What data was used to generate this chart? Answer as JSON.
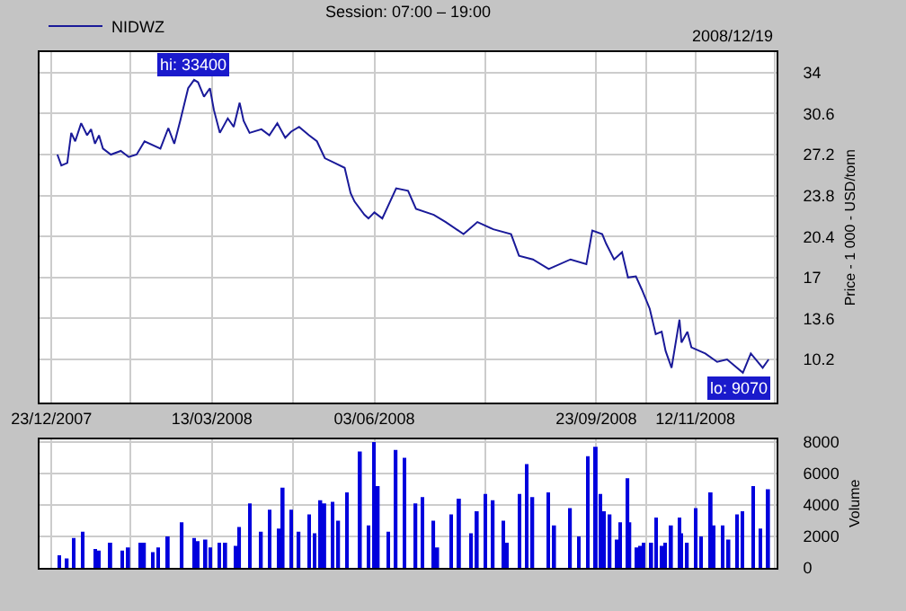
{
  "chart_data": [
    {
      "type": "line",
      "title": "Session: 07:00 – 19:00",
      "ylabel": "Price - 1 000 - USD/tonn",
      "legend": "top left",
      "grid": true,
      "annotations": [
        "2008/12/19",
        {
          "text": "hi: 33400",
          "x": "2008-03-04",
          "y": 33.4
        },
        {
          "text": "lo: 9070",
          "x": "2008-12-06",
          "y": 9.07
        }
      ],
      "xlim": [
        "2007-12-17",
        "2008-12-23"
      ],
      "xticks": [
        {
          "value": "2007-12-23",
          "label": "23/12/2007"
        },
        {
          "value": "2008-02-01",
          "label": null
        },
        {
          "value": "2008-03-13",
          "label": "13/03/2008"
        },
        {
          "value": "2008-04-23",
          "label": null
        },
        {
          "value": "2008-06-03",
          "label": "03/06/2008"
        },
        {
          "value": "2008-07-29",
          "label": null
        },
        {
          "value": "2008-09-23",
          "label": "23/09/2008"
        },
        {
          "value": "2008-10-18",
          "label": null
        },
        {
          "value": "2008-11-12",
          "label": "12/11/2008"
        },
        {
          "value": "2008-12-22",
          "label": null
        }
      ],
      "ylim": [
        6.6,
        35.7
      ],
      "yticks": [
        10.2,
        13.6,
        17,
        20.4,
        23.8,
        27.2,
        30.6,
        34
      ],
      "series": [
        {
          "name": "NIDWZ",
          "color": "#1a1a99",
          "x": [
            "2007-12-26",
            "2007-12-28",
            "2007-12-31",
            "2008-01-02",
            "2008-01-04",
            "2008-01-07",
            "2008-01-10",
            "2008-01-12",
            "2008-01-14",
            "2008-01-16",
            "2008-01-18",
            "2008-01-22",
            "2008-01-27",
            "2008-01-31",
            "2008-02-04",
            "2008-02-08",
            "2008-02-16",
            "2008-02-20",
            "2008-02-23",
            "2008-02-26",
            "2008-03-01",
            "2008-03-04",
            "2008-03-06",
            "2008-03-09",
            "2008-03-12",
            "2008-03-14",
            "2008-03-17",
            "2008-03-21",
            "2008-03-24",
            "2008-03-27",
            "2008-03-29",
            "2008-04-01",
            "2008-04-07",
            "2008-04-11",
            "2008-04-15",
            "2008-04-19",
            "2008-04-22",
            "2008-04-26",
            "2008-05-01",
            "2008-05-05",
            "2008-05-09",
            "2008-05-14",
            "2008-05-19",
            "2008-05-22",
            "2008-05-24",
            "2008-05-29",
            "2008-05-31",
            "2008-06-03",
            "2008-06-07",
            "2008-06-14",
            "2008-06-20",
            "2008-06-24",
            "2008-07-03",
            "2008-07-09",
            "2008-07-18",
            "2008-07-25",
            "2008-08-02",
            "2008-08-11",
            "2008-08-15",
            "2008-08-22",
            "2008-08-30",
            "2008-09-10",
            "2008-09-18",
            "2008-09-21",
            "2008-09-26",
            "2008-09-28",
            "2008-10-02",
            "2008-10-06",
            "2008-10-09",
            "2008-10-13",
            "2008-10-16",
            "2008-10-20",
            "2008-10-23",
            "2008-10-26",
            "2008-10-28",
            "2008-10-31",
            "2008-11-04",
            "2008-11-05",
            "2008-11-08",
            "2008-11-10",
            "2008-11-17",
            "2008-11-23",
            "2008-11-28",
            "2008-12-06",
            "2008-12-10",
            "2008-12-16",
            "2008-12-19"
          ],
          "values": [
            27.2,
            26.3,
            26.5,
            29.0,
            28.3,
            29.8,
            28.8,
            29.3,
            28.1,
            28.8,
            27.7,
            27.2,
            27.5,
            27.0,
            27.2,
            28.3,
            27.7,
            29.4,
            28.1,
            30.0,
            32.7,
            33.4,
            33.2,
            32.0,
            32.7,
            30.9,
            29.0,
            30.2,
            29.5,
            31.5,
            30.0,
            29.0,
            29.3,
            28.8,
            29.8,
            28.6,
            29.1,
            29.5,
            28.8,
            28.3,
            26.9,
            26.5,
            26.1,
            24.0,
            23.3,
            22.2,
            21.9,
            22.4,
            21.9,
            24.4,
            24.2,
            22.7,
            22.2,
            21.6,
            20.6,
            21.6,
            21.0,
            20.6,
            18.8,
            18.5,
            17.7,
            18.5,
            18.1,
            20.9,
            20.6,
            19.8,
            18.5,
            19.1,
            17.0,
            17.1,
            16.0,
            14.4,
            12.3,
            12.5,
            10.9,
            9.5,
            13.5,
            11.6,
            12.5,
            11.2,
            10.7,
            10.0,
            10.2,
            9.1,
            10.7,
            9.5,
            10.2
          ]
        }
      ]
    },
    {
      "type": "bar",
      "ylabel": "Volume",
      "grid": true,
      "tick_labels": "y",
      "xlim": [
        "2007-12-17",
        "2008-12-23"
      ],
      "xticks": [
        {
          "value": "2007-12-23",
          "label": null
        },
        {
          "value": "2008-02-01",
          "label": null
        },
        {
          "value": "2008-03-13",
          "label": null
        },
        {
          "value": "2008-04-23",
          "label": null
        },
        {
          "value": "2008-06-03",
          "label": null
        },
        {
          "value": "2008-07-29",
          "label": null
        },
        {
          "value": "2008-09-23",
          "label": null
        },
        {
          "value": "2008-10-18",
          "label": null
        },
        {
          "value": "2008-11-12",
          "label": null
        },
        {
          "value": "2008-12-22",
          "label": null
        }
      ],
      "ylim": [
        0,
        8200
      ],
      "yticks": [
        0,
        2000,
        4000,
        6000,
        8000
      ],
      "series": [
        {
          "color": "#0000dd",
          "x": [
            "2007-12-27",
            "2007-12-31",
            "2008-01-03",
            "2008-01-08",
            "2008-01-14",
            "2008-01-16",
            "2008-01-22",
            "2008-01-28",
            "2008-01-31",
            "2008-02-06",
            "2008-02-08",
            "2008-02-12",
            "2008-02-15",
            "2008-02-20",
            "2008-02-27",
            "2008-03-04",
            "2008-03-06",
            "2008-03-10",
            "2008-03-12",
            "2008-03-17",
            "2008-03-20",
            "2008-03-25",
            "2008-03-27",
            "2008-04-01",
            "2008-04-07",
            "2008-04-11",
            "2008-04-16",
            "2008-04-18",
            "2008-04-22",
            "2008-04-26",
            "2008-05-01",
            "2008-05-04",
            "2008-05-07",
            "2008-05-09",
            "2008-05-13",
            "2008-05-16",
            "2008-05-20",
            "2008-05-27",
            "2008-05-31",
            "2008-06-03",
            "2008-06-05",
            "2008-06-10",
            "2008-06-14",
            "2008-06-18",
            "2008-06-24",
            "2008-06-27",
            "2008-07-03",
            "2008-07-05",
            "2008-07-12",
            "2008-07-16",
            "2008-07-22",
            "2008-07-25",
            "2008-07-29",
            "2008-08-02",
            "2008-08-07",
            "2008-08-09",
            "2008-08-15",
            "2008-08-19",
            "2008-08-22",
            "2008-08-30",
            "2008-09-02",
            "2008-09-10",
            "2008-09-14",
            "2008-09-19",
            "2008-09-23",
            "2008-09-25",
            "2008-09-27",
            "2008-09-30",
            "2008-10-03",
            "2008-10-05",
            "2008-10-09",
            "2008-10-10",
            "2008-10-13",
            "2008-10-15",
            "2008-10-17",
            "2008-10-21",
            "2008-10-23",
            "2008-10-26",
            "2008-10-28",
            "2008-10-31",
            "2008-11-04",
            "2008-11-05",
            "2008-11-08",
            "2008-11-12",
            "2008-11-15",
            "2008-11-20",
            "2008-11-21",
            "2008-11-26",
            "2008-11-29",
            "2008-12-03",
            "2008-12-06",
            "2008-12-11",
            "2008-12-15",
            "2008-12-19"
          ],
          "values": [
            800,
            600,
            1900,
            2300,
            1200,
            1100,
            1600,
            1100,
            1300,
            1600,
            1600,
            1000,
            1300,
            2000,
            2900,
            1900,
            1700,
            1800,
            1300,
            1600,
            1600,
            1400,
            2600,
            4100,
            2300,
            3700,
            2500,
            5100,
            3700,
            2300,
            3400,
            2200,
            4300,
            4100,
            4200,
            3000,
            4800,
            7400,
            2700,
            8000,
            5200,
            2300,
            7500,
            7000,
            4100,
            4500,
            3000,
            1300,
            3400,
            4400,
            2200,
            3600,
            4700,
            4300,
            3000,
            1600,
            4700,
            6600,
            4500,
            4800,
            2700,
            3800,
            2000,
            7100,
            7700,
            4700,
            3600,
            3400,
            1800,
            2900,
            5700,
            2900,
            1300,
            1400,
            1600,
            1600,
            3200,
            1400,
            1600,
            2700,
            3200,
            2200,
            1600,
            3800,
            2000,
            4800,
            2700,
            2700,
            1800,
            3400,
            3600,
            5200,
            2500,
            5000
          ]
        }
      ]
    }
  ]
}
